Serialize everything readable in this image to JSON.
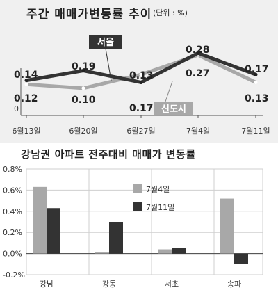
{
  "chart_data": [
    {
      "type": "line",
      "title": "주간 매매가변동률 추이",
      "unit": "(단위 : %)",
      "categories": [
        "6월13일",
        "6월20일",
        "6월27일",
        "7월4일",
        "7월11일"
      ],
      "zero_label": "0",
      "ylim": [
        0,
        0.32
      ],
      "series": [
        {
          "name": "서울",
          "values": [
            0.14,
            0.19,
            0.13,
            0.28,
            0.17
          ],
          "labels": [
            "0.14",
            "0.19",
            "0.13",
            "0.28",
            "0.17"
          ],
          "color": "#333333"
        },
        {
          "name": "신도시",
          "values": [
            0.12,
            0.1,
            0.17,
            0.27,
            0.13
          ],
          "labels": [
            "0.12",
            "0.10",
            "0.17",
            "0.27",
            "0.13"
          ],
          "color": "#a8a8a8"
        }
      ]
    },
    {
      "type": "bar",
      "title": "강남권 아파트 전주대비 매매가 변동률",
      "categories": [
        "강남",
        "강동",
        "서초",
        "송파"
      ],
      "yticks": [
        "0.8%",
        "0.6%",
        "0.4%",
        "0.2%",
        "0.0%",
        "-0.2%"
      ],
      "ylim": [
        -0.2,
        0.8
      ],
      "grid": true,
      "legend_position": "top-right",
      "series": [
        {
          "name": "7월4일",
          "values": [
            0.63,
            0.01,
            0.04,
            0.52
          ],
          "color": "#a8a8a8"
        },
        {
          "name": "7월11일",
          "values": [
            0.43,
            0.3,
            0.05,
            -0.1
          ],
          "color": "#333333"
        }
      ]
    }
  ]
}
